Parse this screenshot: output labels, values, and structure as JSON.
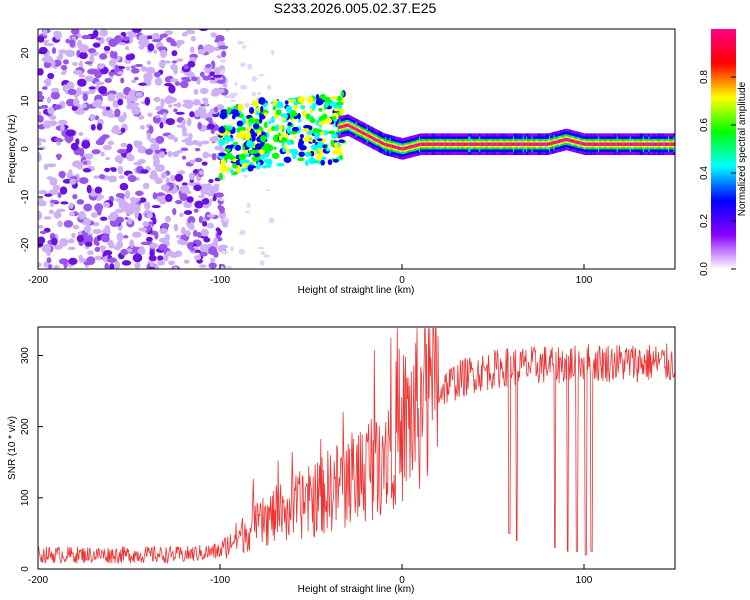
{
  "title": "S233.2026.005.02.37.E25",
  "chart_data": [
    {
      "type": "heatmap",
      "xlabel": "Height of straight line (km)",
      "ylabel": "Frequency (Hz)",
      "xlim": [
        -200,
        150
      ],
      "ylim": [
        -25,
        25
      ],
      "xticks": [
        -200,
        -100,
        0,
        100
      ],
      "yticks": [
        -20,
        -10,
        0,
        10,
        20
      ],
      "colorbar": {
        "label": "Normalized spectral amplitude",
        "range": [
          0,
          1
        ],
        "ticks": [
          0.0,
          0.2,
          0.4,
          0.6,
          0.8
        ],
        "tick_labels": [
          "0.0",
          "0.2",
          "0.4",
          "0.6",
          "0.8"
        ],
        "colormap": [
          "#ffffff",
          "#8800ff",
          "#0000ff",
          "#00ffff",
          "#00ff00",
          "#ffff00",
          "#ff0000",
          "#ff0088"
        ]
      },
      "ridge": {
        "description_points_x": [
          -100,
          -80,
          -60,
          -40,
          -30,
          -20,
          -10,
          0,
          10,
          20,
          40,
          60,
          80,
          90,
          100,
          120,
          150
        ],
        "description_points_y": [
          1,
          3,
          4,
          4,
          5,
          3,
          1,
          0,
          1,
          1,
          1,
          1,
          1,
          2,
          1,
          1,
          1
        ]
      }
    },
    {
      "type": "line",
      "xlabel": "Height of straight line (km)",
      "ylabel": "SNR (10 * v/v)",
      "xlim": [
        -200,
        150
      ],
      "ylim": [
        0,
        340
      ],
      "xticks": [
        -200,
        -100,
        0,
        100
      ],
      "yticks": [
        0,
        100,
        200,
        300
      ],
      "series": [
        {
          "name": "SNR",
          "color": "#ee3333",
          "x": [
            -200,
            -180,
            -160,
            -140,
            -120,
            -100,
            -90,
            -80,
            -70,
            -60,
            -50,
            -40,
            -30,
            -20,
            -10,
            0,
            10,
            20,
            30,
            40,
            50,
            60,
            70,
            80,
            90,
            100,
            110,
            120,
            130,
            140,
            150
          ],
          "y": [
            20,
            20,
            20,
            20,
            20,
            25,
            45,
            60,
            75,
            85,
            95,
            110,
            125,
            140,
            170,
            200,
            225,
            250,
            265,
            275,
            280,
            285,
            285,
            288,
            288,
            290,
            290,
            290,
            290,
            290,
            288
          ]
        }
      ],
      "dropouts": [
        {
          "x": 59,
          "y": 50
        },
        {
          "x": 63,
          "y": 40
        },
        {
          "x": 84,
          "y": 30
        },
        {
          "x": 91,
          "y": 25
        },
        {
          "x": 96,
          "y": 25
        },
        {
          "x": 101,
          "y": 20
        },
        {
          "x": 104,
          "y": 25
        }
      ]
    }
  ]
}
